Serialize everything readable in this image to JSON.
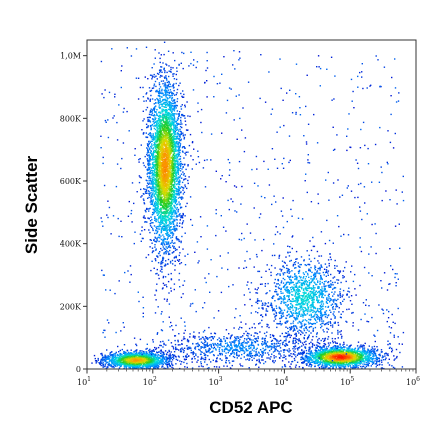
{
  "chart_data": {
    "type": "scatter",
    "subtype": "flow-cytometry-density-dot-plot",
    "xlabel": "CD52 APC",
    "ylabel": "Side Scatter",
    "x_scale": "log",
    "xlim": [
      10,
      1000000
    ],
    "x_ticks": [
      {
        "value": 10,
        "base": "10",
        "exp": "1"
      },
      {
        "value": 100,
        "base": "10",
        "exp": "2"
      },
      {
        "value": 1000,
        "base": "10",
        "exp": "3"
      },
      {
        "value": 10000,
        "base": "10",
        "exp": "4"
      },
      {
        "value": 100000,
        "base": "10",
        "exp": "5"
      },
      {
        "value": 1000000,
        "base": "10",
        "exp": "6"
      }
    ],
    "y_scale": "linear",
    "ylim": [
      0,
      1050000
    ],
    "y_ticks": [
      {
        "value": 0,
        "label": "0"
      },
      {
        "value": 200000,
        "label": "200K"
      },
      {
        "value": 400000,
        "label": "400K"
      },
      {
        "value": 600000,
        "label": "600K"
      },
      {
        "value": 800000,
        "label": "800K"
      },
      {
        "value": 1000000,
        "label": "1,0M"
      }
    ],
    "grid": false,
    "legend": "none",
    "density_colormap": [
      "#0000cc",
      "#0090ff",
      "#00dddd",
      "#22cc22",
      "#dddd00",
      "#ff8800",
      "#ff1100"
    ],
    "populations": [
      {
        "x_center": 150,
        "y_center": 650000,
        "x_spread_decades": 0.13,
        "y_spread": 135000,
        "count": 3800,
        "peak_color": "#ff8800"
      },
      {
        "x_center": 55,
        "y_center": 30000,
        "x_spread_decades": 0.25,
        "y_spread": 14000,
        "count": 1500,
        "peak_color": "#ffaa00"
      },
      {
        "x_center": 70000,
        "y_center": 40000,
        "x_spread_decades": 0.28,
        "y_spread": 17000,
        "count": 1700,
        "peak_color": "#ff1100"
      },
      {
        "x_center": 20000,
        "y_center": 230000,
        "x_spread_decades": 0.3,
        "y_spread": 65000,
        "count": 1200,
        "peak_color": "#00dddd"
      },
      {
        "x_center": 2000,
        "y_center": 70000,
        "x_spread_decades": 0.55,
        "y_spread": 25000,
        "count": 700,
        "peak_color": "#0090ff"
      }
    ]
  }
}
